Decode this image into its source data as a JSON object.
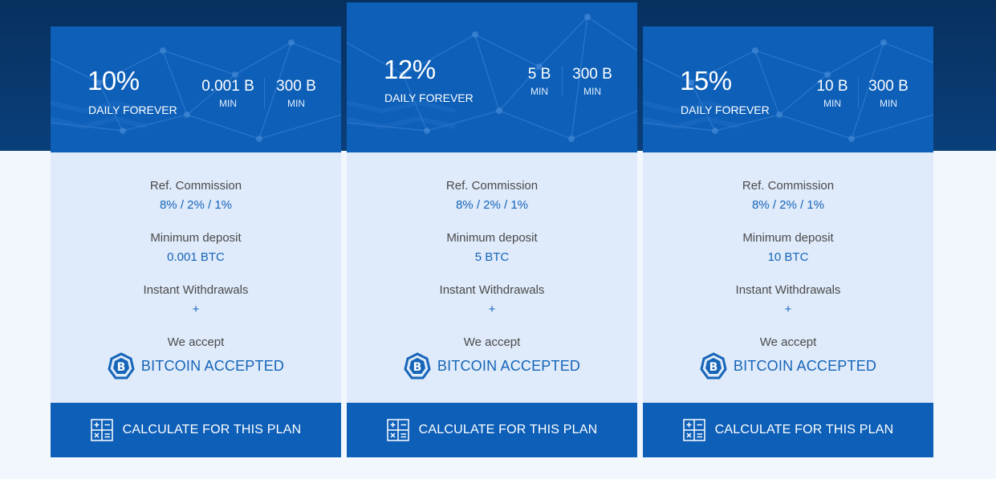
{
  "colors": {
    "band_dark": "#07305f",
    "card_header": "#0d5fb8",
    "card_body": "#dfeafa",
    "accent_text": "#1565b8",
    "page_bg": "#f2f7fd"
  },
  "plans": [
    {
      "rate": "10%",
      "rate_label": "DAILY FOREVER",
      "min_value": "0.001 B",
      "min_label": "MIN",
      "max_value": "300 B",
      "max_label": "MIN",
      "ref_label": "Ref. Commission",
      "ref_value": "8% / 2% / 1%",
      "deposit_label": "Minimum deposit",
      "deposit_value": "0.001 BTC",
      "withdraw_label": "Instant Withdrawals",
      "withdraw_value": "+",
      "accept_label": "We accept",
      "accept_text": "BITCOIN ACCEPTED",
      "button_label": "CALCULATE FOR THIS PLAN"
    },
    {
      "rate": "12%",
      "rate_label": "DAILY FOREVER",
      "min_value": "5 B",
      "min_label": "MIN",
      "max_value": "300 B",
      "max_label": "MIN",
      "ref_label": "Ref. Commission",
      "ref_value": "8% / 2% / 1%",
      "deposit_label": "Minimum deposit",
      "deposit_value": "5 BTC",
      "withdraw_label": "Instant Withdrawals",
      "withdraw_value": "+",
      "accept_label": "We accept",
      "accept_text": "BITCOIN ACCEPTED",
      "button_label": "CALCULATE FOR THIS PLAN"
    },
    {
      "rate": "15%",
      "rate_label": "DAILY FOREVER",
      "min_value": "10 B",
      "min_label": "MIN",
      "max_value": "300 B",
      "max_label": "MIN",
      "ref_label": "Ref. Commission",
      "ref_value": "8% / 2% / 1%",
      "deposit_label": "Minimum deposit",
      "deposit_value": "10 BTC",
      "withdraw_label": "Instant Withdrawals",
      "withdraw_value": "+",
      "accept_label": "We accept",
      "accept_text": "BITCOIN ACCEPTED",
      "button_label": "CALCULATE FOR THIS PLAN"
    }
  ]
}
